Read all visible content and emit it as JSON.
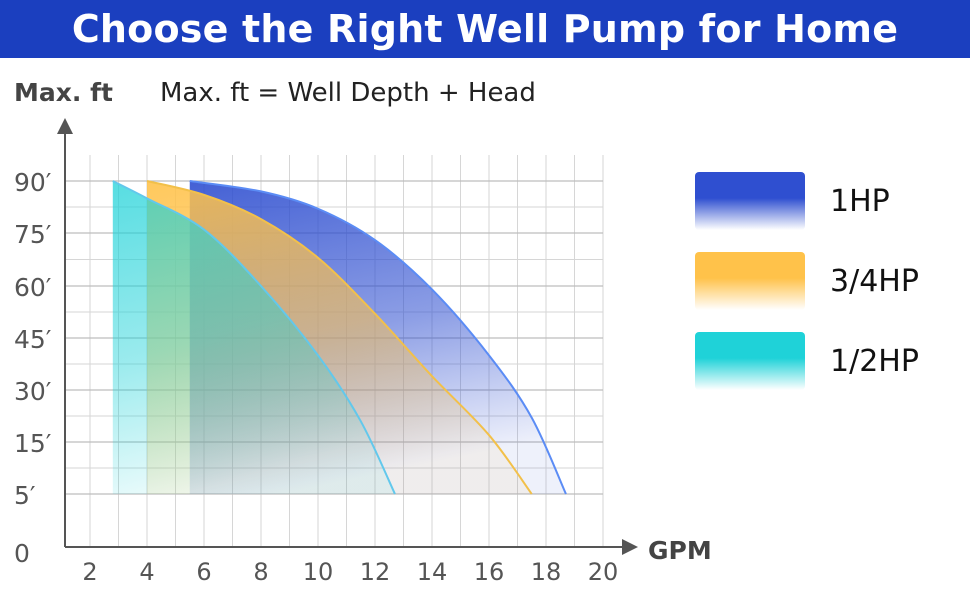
{
  "banner": {
    "title": "Choose the Right Well Pump for Home"
  },
  "formula": "Max. ft = Well Depth + Head",
  "chart_data": {
    "type": "area",
    "ylabel": "Max. ft",
    "xlabel": "GPM",
    "x_ticks": [
      "2",
      "4",
      "6",
      "8",
      "10",
      "12",
      "14",
      "16",
      "18",
      "20"
    ],
    "y_ticks": [
      "90′",
      "75′",
      "60′",
      "45′",
      "30′",
      "15′",
      "5′",
      "0"
    ],
    "xlim": [
      1,
      20
    ],
    "grid": true,
    "legend_position": "right",
    "series": [
      {
        "name": "1HP",
        "color": "#2f4fd0",
        "x": [
          5.5,
          8,
          10,
          12,
          14,
          16,
          17.5,
          18.7
        ],
        "y": [
          90,
          87,
          82,
          73,
          59,
          40,
          22,
          5
        ]
      },
      {
        "name": "3/4HP",
        "color": "#ffc24a",
        "x": [
          4,
          6,
          8,
          10,
          12,
          14,
          16,
          17.5
        ],
        "y": [
          90,
          86,
          79,
          68,
          52,
          34,
          17,
          5
        ]
      },
      {
        "name": "1/2HP",
        "color": "#1fd2d8",
        "x": [
          2.8,
          4,
          6,
          8,
          10,
          11.5,
          12.7
        ],
        "y": [
          90,
          85,
          76,
          60,
          40,
          21,
          5
        ]
      }
    ]
  }
}
